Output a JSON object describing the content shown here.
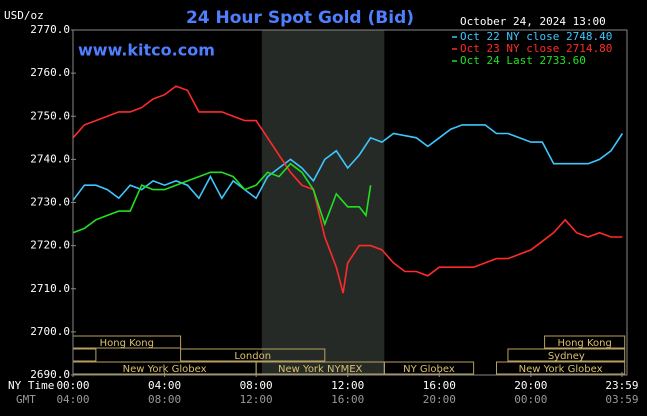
{
  "chart_data": {
    "type": "line",
    "title": "24 Hour Spot Gold (Bid)",
    "y_label": "USD/oz",
    "watermark": "www.kitco.com",
    "timestamp": "October 24, 2024 13:00",
    "x_label": "NY Time",
    "x2_label": "GMT",
    "xlim": [
      0,
      24.2
    ],
    "ylim": [
      2690,
      2770
    ],
    "yticks": [
      {
        "value": 2690,
        "label": "2690.0"
      },
      {
        "value": 2700,
        "label": "2700.0"
      },
      {
        "value": 2710,
        "label": "2710.0"
      },
      {
        "value": 2720,
        "label": "2720.0"
      },
      {
        "value": 2730,
        "label": "2730.0"
      },
      {
        "value": 2740,
        "label": "2740.0"
      },
      {
        "value": 2750,
        "label": "2750.0"
      },
      {
        "value": 2760,
        "label": "2760.0"
      },
      {
        "value": 2770,
        "label": "2770.0"
      }
    ],
    "xticks": [
      {
        "value": 0,
        "label": "00:00"
      },
      {
        "value": 4,
        "label": "04:00"
      },
      {
        "value": 8,
        "label": "08:00"
      },
      {
        "value": 12,
        "label": "12:00"
      },
      {
        "value": 16,
        "label": "16:00"
      },
      {
        "value": 20,
        "label": "20:00"
      },
      {
        "value": 23.98,
        "label": "23:59"
      }
    ],
    "x2ticks": [
      {
        "value": 0,
        "label": "04:00"
      },
      {
        "value": 4,
        "label": "08:00"
      },
      {
        "value": 8,
        "label": "12:00"
      },
      {
        "value": 12,
        "label": "16:00"
      },
      {
        "value": 16,
        "label": "20:00"
      },
      {
        "value": 20,
        "label": "00:00"
      },
      {
        "value": 23.98,
        "label": "03:59"
      }
    ],
    "grid": false,
    "legend": "top-right",
    "highlight": [
      8.25,
      13.6
    ],
    "sessions": [
      [
        {
          "label": "Hong Kong",
          "start": 0,
          "end": 4.7
        },
        {
          "label": "Hong Kong",
          "start": 20.6,
          "end": 24.1
        }
      ],
      [
        {
          "start": 0,
          "end": 1
        },
        {
          "label": "London",
          "start": 4.7,
          "end": 11
        },
        {
          "label": "Sydney",
          "start": 19,
          "end": 24.1
        }
      ],
      [
        {
          "label": "New York Globex",
          "start": 0,
          "end": 8
        },
        {
          "label": "New York NYMEX",
          "start": 8,
          "end": 13.6
        },
        {
          "label": "NY Globex",
          "start": 13.6,
          "end": 17.5
        },
        {
          "label": "New York Globex",
          "start": 18.5,
          "end": 24.1
        }
      ]
    ],
    "series": [
      {
        "name": "Oct 22 NY close 2748.40",
        "color": "#3ec6ff",
        "x": [
          0,
          0.5,
          1,
          1.5,
          2,
          2.5,
          3,
          3.5,
          4,
          4.5,
          5,
          5.5,
          6,
          6.5,
          7,
          7.5,
          8,
          8.5,
          9,
          9.5,
          10,
          10.5,
          11,
          11.5,
          12,
          12.5,
          13,
          13.5,
          14,
          15,
          15.5,
          16,
          16.5,
          17,
          18,
          18.5,
          19,
          19.5,
          20,
          20.5,
          21,
          21.5,
          22,
          22.5,
          23,
          23.5,
          24
        ],
        "values": [
          2730.5,
          2734,
          2734,
          2733,
          2731,
          2734,
          2733,
          2735,
          2734,
          2735,
          2734,
          2731,
          2736,
          2731,
          2735,
          2733,
          2731,
          2736,
          2738,
          2740,
          2738,
          2735,
          2740,
          2742,
          2738,
          2741,
          2745,
          2744,
          2746,
          2745,
          2743,
          2745,
          2747,
          2748,
          2748,
          2746,
          2746,
          2745,
          2744,
          2744,
          2739,
          2739,
          2739,
          2739,
          2740,
          2742,
          2746
        ]
      },
      {
        "name": "Oct 23 NY close 2714.80",
        "color": "#ff2a2a",
        "x": [
          0,
          0.5,
          1,
          1.5,
          2,
          2.5,
          3,
          3.5,
          4,
          4.5,
          5,
          5.5,
          6,
          6.5,
          7,
          7.5,
          8,
          8.5,
          9,
          9.5,
          10,
          10.5,
          11,
          11.5,
          11.8,
          12,
          12.5,
          13,
          13.5,
          14,
          14.5,
          15,
          15.5,
          16,
          16.5,
          17,
          17.5,
          18,
          18.5,
          19,
          19.5,
          20,
          20.5,
          21,
          21.5,
          22,
          22.5,
          23,
          23.5,
          24
        ],
        "values": [
          2745,
          2748,
          2749,
          2750,
          2751,
          2751,
          2752,
          2754,
          2755,
          2757,
          2756,
          2751,
          2751,
          2751,
          2750,
          2749,
          2749,
          2745,
          2741,
          2737,
          2734,
          2733,
          2722,
          2715,
          2709,
          2716,
          2720,
          2720,
          2719,
          2716,
          2714,
          2714,
          2713,
          2715,
          2715,
          2715,
          2715,
          2716,
          2717,
          2717,
          2718,
          2719,
          2721,
          2723,
          2726,
          2723,
          2722,
          2723,
          2722,
          2722
        ]
      },
      {
        "name": "Oct 24 Last 2733.60",
        "color": "#21e021",
        "x": [
          0,
          0.5,
          1,
          1.5,
          2,
          2.5,
          3,
          3.5,
          4,
          4.5,
          5,
          5.5,
          6,
          6.5,
          7,
          7.5,
          8,
          8.5,
          9,
          9.5,
          10,
          10.5,
          11,
          11.5,
          12,
          12.5,
          12.8,
          13
        ],
        "values": [
          2723,
          2724,
          2726,
          2727,
          2728,
          2728,
          2734,
          2733,
          2733,
          2734,
          2735,
          2736,
          2737,
          2737,
          2736,
          2733,
          2734,
          2737,
          2736,
          2739,
          2737,
          2733,
          2725,
          2732,
          2729,
          2729,
          2727,
          2734
        ]
      }
    ]
  }
}
